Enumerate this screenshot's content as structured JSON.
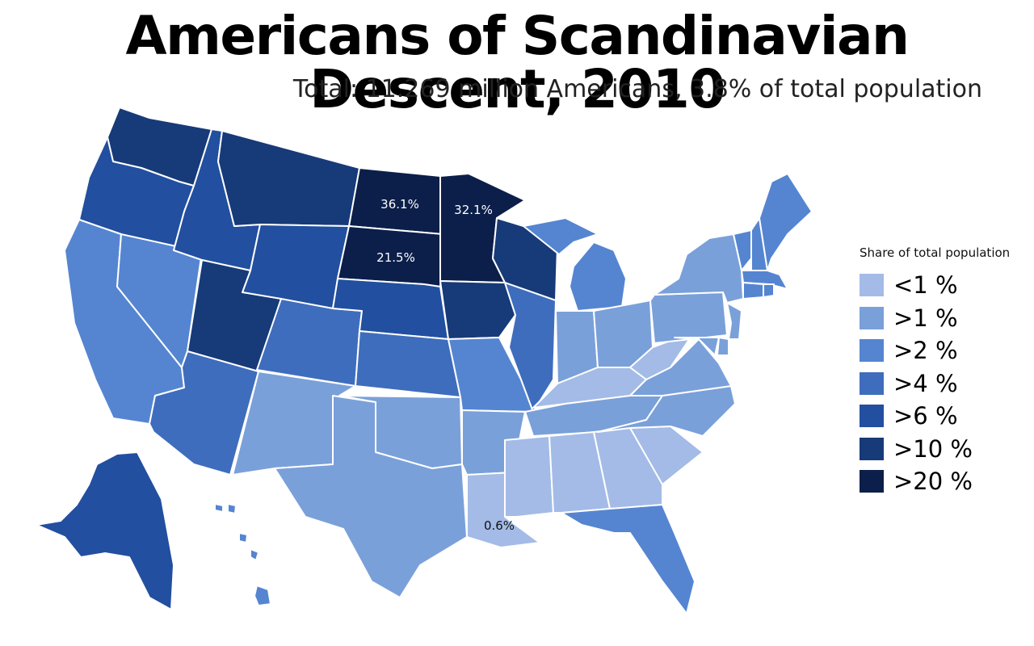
{
  "title": "Americans of Scandinavian Descent, 2010",
  "subtitle": "Total: 11.269 million Americans, 3.8% of total population",
  "legend": {
    "title": "Share of total population",
    "items": [
      {
        "label": "<1 %",
        "color": "#a3bbe6"
      },
      {
        "label": ">1 %",
        "color": "#7aa0da"
      },
      {
        "label": ">2 %",
        "color": "#5585d1"
      },
      {
        "label": ">4 %",
        "color": "#3f6dbd"
      },
      {
        "label": ">6 %",
        "color": "#224f9f"
      },
      {
        "label": ">10 %",
        "color": "#173a78"
      },
      {
        "label": ">20 %",
        "color": "#0c1f4a"
      }
    ]
  },
  "labels": {
    "north_dakota": "36.1%",
    "minnesota": "32.1%",
    "south_dakota": "21.5%",
    "louisiana": "0.6%"
  },
  "states": {
    "WA": {
      "name": "Washington",
      "class": ">10 %"
    },
    "OR": {
      "name": "Oregon",
      "class": ">6 %"
    },
    "CA": {
      "name": "California",
      "class": ">2 %"
    },
    "NV": {
      "name": "Nevada",
      "class": ">2 %"
    },
    "ID": {
      "name": "Idaho",
      "class": ">6 %"
    },
    "MT": {
      "name": "Montana",
      "class": ">10 %"
    },
    "WY": {
      "name": "Wyoming",
      "class": ">6 %"
    },
    "UT": {
      "name": "Utah",
      "class": ">10 %"
    },
    "AZ": {
      "name": "Arizona",
      "class": ">4 %"
    },
    "CO": {
      "name": "Colorado",
      "class": ">4 %"
    },
    "NM": {
      "name": "New Mexico",
      "class": ">1 %"
    },
    "ND": {
      "name": "North Dakota",
      "class": ">20 %"
    },
    "SD": {
      "name": "South Dakota",
      "class": ">20 %"
    },
    "NE": {
      "name": "Nebraska",
      "class": ">6 %"
    },
    "KS": {
      "name": "Kansas",
      "class": ">4 %"
    },
    "OK": {
      "name": "Oklahoma",
      "class": ">1 %"
    },
    "TX": {
      "name": "Texas",
      "class": ">1 %"
    },
    "MN": {
      "name": "Minnesota",
      "class": ">20 %"
    },
    "IA": {
      "name": "Iowa",
      "class": ">10 %"
    },
    "MO": {
      "name": "Missouri",
      "class": ">2 %"
    },
    "AR": {
      "name": "Arkansas",
      "class": ">1 %"
    },
    "LA": {
      "name": "Louisiana",
      "class": "<1 %"
    },
    "WI": {
      "name": "Wisconsin",
      "class": ">10 %"
    },
    "IL": {
      "name": "Illinois",
      "class": ">4 %"
    },
    "MI": {
      "name": "Michigan",
      "class": ">2 %"
    },
    "IN": {
      "name": "Indiana",
      "class": ">1 %"
    },
    "OH": {
      "name": "Ohio",
      "class": ">1 %"
    },
    "KY": {
      "name": "Kentucky",
      "class": "<1 %"
    },
    "TN": {
      "name": "Tennessee",
      "class": ">1 %"
    },
    "MS": {
      "name": "Mississippi",
      "class": "<1 %"
    },
    "AL": {
      "name": "Alabama",
      "class": "<1 %"
    },
    "GA": {
      "name": "Georgia",
      "class": "<1 %"
    },
    "FL": {
      "name": "Florida",
      "class": ">2 %"
    },
    "SC": {
      "name": "South Carolina",
      "class": "<1 %"
    },
    "NC": {
      "name": "North Carolina",
      "class": ">1 %"
    },
    "VA": {
      "name": "Virginia",
      "class": ">1 %"
    },
    "WV": {
      "name": "West Virginia",
      "class": "<1 %"
    },
    "MD": {
      "name": "Maryland",
      "class": ">1 %"
    },
    "DE": {
      "name": "Delaware",
      "class": ">1 %"
    },
    "NJ": {
      "name": "New Jersey",
      "class": ">1 %"
    },
    "PA": {
      "name": "Pennsylvania",
      "class": ">1 %"
    },
    "NY": {
      "name": "New York",
      "class": ">1 %"
    },
    "VT": {
      "name": "Vermont",
      "class": ">2 %"
    },
    "NH": {
      "name": "New Hampshire",
      "class": ">2 %"
    },
    "ME": {
      "name": "Maine",
      "class": ">2 %"
    },
    "MA": {
      "name": "Massachusetts",
      "class": ">2 %"
    },
    "CT": {
      "name": "Connecticut",
      "class": ">2 %"
    },
    "RI": {
      "name": "Rhode Island",
      "class": ">2 %"
    },
    "AK": {
      "name": "Alaska",
      "class": ">6 %"
    },
    "HI": {
      "name": "Hawaii",
      "class": ">2 %"
    }
  }
}
